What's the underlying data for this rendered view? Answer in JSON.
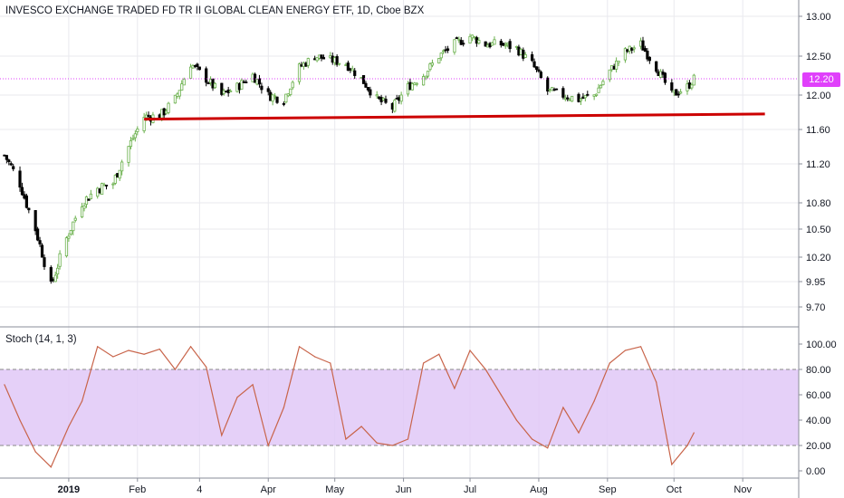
{
  "title": "INVESCO EXCHANGE TRADED FD TR II GLOBAL CLEAN ENERGY ETF, 1D, Cboe BZX",
  "stoch_label": "Stoch (14, 1, 3)",
  "last_price_label": "12.20",
  "colors": {
    "up": "#6ab04c",
    "down": "#000000",
    "trendline": "#cc0000",
    "stoch_line": "#c8644a",
    "stoch_band": "#e1c8f7",
    "price_tag": "#e040fb",
    "grid": "#e9e9ee",
    "text": "#131722"
  },
  "chart_data": [
    {
      "type": "candlestick",
      "title": "INVESCO EXCHANGE TRADED FD TR II GLOBAL CLEAN ENERGY ETF, 1D, Cboe BZX",
      "ylim": [
        9.6,
        13.1
      ],
      "y_ticks": [
        "13.00",
        "12.50",
        "12.00",
        "11.60",
        "11.20",
        "10.80",
        "10.50",
        "10.20",
        "9.95",
        "9.70"
      ],
      "x_ticks": [
        "2019",
        "Feb",
        "4",
        "Apr",
        "May",
        "Jun",
        "Jul",
        "Aug",
        "Sep",
        "Oct",
        "Nov"
      ],
      "last_price": 12.2,
      "close_path": [
        [
          "2018-12-03",
          11.3
        ],
        [
          "2018-12-10",
          11.0
        ],
        [
          "2018-12-17",
          10.5
        ],
        [
          "2018-12-24",
          9.9
        ],
        [
          "2018-12-31",
          10.4
        ],
        [
          "2019-01-07",
          10.8
        ],
        [
          "2019-01-14",
          10.95
        ],
        [
          "2019-01-21",
          11.0
        ],
        [
          "2019-01-28",
          11.4
        ],
        [
          "2019-02-04",
          11.75
        ],
        [
          "2019-02-11",
          11.75
        ],
        [
          "2019-02-18",
          11.95
        ],
        [
          "2019-02-25",
          12.4
        ],
        [
          "2019-03-04",
          12.2
        ],
        [
          "2019-03-11",
          12.0
        ],
        [
          "2019-03-18",
          12.1
        ],
        [
          "2019-03-25",
          12.25
        ],
        [
          "2019-04-01",
          12.0
        ],
        [
          "2019-04-08",
          11.95
        ],
        [
          "2019-04-15",
          12.35
        ],
        [
          "2019-04-22",
          12.5
        ],
        [
          "2019-04-29",
          12.45
        ],
        [
          "2019-05-06",
          12.4
        ],
        [
          "2019-05-13",
          12.2
        ],
        [
          "2019-05-20",
          11.95
        ],
        [
          "2019-05-27",
          11.85
        ],
        [
          "2019-06-03",
          12.1
        ],
        [
          "2019-06-10",
          12.25
        ],
        [
          "2019-06-17",
          12.5
        ],
        [
          "2019-06-24",
          12.65
        ],
        [
          "2019-07-01",
          12.75
        ],
        [
          "2019-07-08",
          12.65
        ],
        [
          "2019-07-15",
          12.65
        ],
        [
          "2019-07-22",
          12.6
        ],
        [
          "2019-07-29",
          12.4
        ],
        [
          "2019-08-05",
          12.05
        ],
        [
          "2019-08-12",
          12.0
        ],
        [
          "2019-08-19",
          11.95
        ],
        [
          "2019-08-26",
          12.0
        ],
        [
          "2019-09-02",
          12.3
        ],
        [
          "2019-09-09",
          12.55
        ],
        [
          "2019-09-16",
          12.65
        ],
        [
          "2019-09-23",
          12.35
        ],
        [
          "2019-09-30",
          12.0
        ],
        [
          "2019-10-07",
          12.1
        ],
        [
          "2019-10-10",
          12.2
        ]
      ],
      "annotations": [
        {
          "type": "trendline",
          "from": [
            "2019-02-04",
            11.72
          ],
          "to": [
            "2019-11-11",
            11.78
          ]
        },
        {
          "type": "horizontal_dotted_line",
          "y": 12.2
        }
      ]
    },
    {
      "type": "line",
      "title": "Stoch (14, 1, 3)",
      "ylim": [
        -5,
        105
      ],
      "y_ticks": [
        "100.00",
        "80.00",
        "60.00",
        "40.00",
        "20.00",
        "0.00"
      ],
      "band": [
        20,
        80
      ],
      "series": [
        {
          "values_by_date": [
            [
              "2018-12-03",
              68
            ],
            [
              "2018-12-10",
              40
            ],
            [
              "2018-12-17",
              15
            ],
            [
              "2018-12-24",
              3
            ],
            [
              "2019-01-01",
              35
            ],
            [
              "2019-01-07",
              55
            ],
            [
              "2019-01-14",
              98
            ],
            [
              "2019-01-21",
              90
            ],
            [
              "2019-01-28",
              95
            ],
            [
              "2019-02-04",
              92
            ],
            [
              "2019-02-11",
              96
            ],
            [
              "2019-02-18",
              80
            ],
            [
              "2019-02-25",
              98
            ],
            [
              "2019-03-04",
              82
            ],
            [
              "2019-03-11",
              28
            ],
            [
              "2019-03-18",
              58
            ],
            [
              "2019-03-25",
              68
            ],
            [
              "2019-04-01",
              20
            ],
            [
              "2019-04-08",
              50
            ],
            [
              "2019-04-15",
              98
            ],
            [
              "2019-04-22",
              90
            ],
            [
              "2019-04-29",
              85
            ],
            [
              "2019-05-06",
              25
            ],
            [
              "2019-05-13",
              35
            ],
            [
              "2019-05-20",
              22
            ],
            [
              "2019-05-27",
              20
            ],
            [
              "2019-06-03",
              25
            ],
            [
              "2019-06-10",
              85
            ],
            [
              "2019-06-17",
              92
            ],
            [
              "2019-06-24",
              65
            ],
            [
              "2019-07-01",
              95
            ],
            [
              "2019-07-08",
              80
            ],
            [
              "2019-07-15",
              60
            ],
            [
              "2019-07-22",
              40
            ],
            [
              "2019-07-29",
              25
            ],
            [
              "2019-08-05",
              18
            ],
            [
              "2019-08-12",
              50
            ],
            [
              "2019-08-19",
              30
            ],
            [
              "2019-08-26",
              55
            ],
            [
              "2019-09-02",
              85
            ],
            [
              "2019-09-09",
              95
            ],
            [
              "2019-09-16",
              98
            ],
            [
              "2019-09-23",
              70
            ],
            [
              "2019-09-30",
              5
            ],
            [
              "2019-10-07",
              20
            ],
            [
              "2019-10-10",
              30
            ]
          ]
        }
      ]
    }
  ]
}
